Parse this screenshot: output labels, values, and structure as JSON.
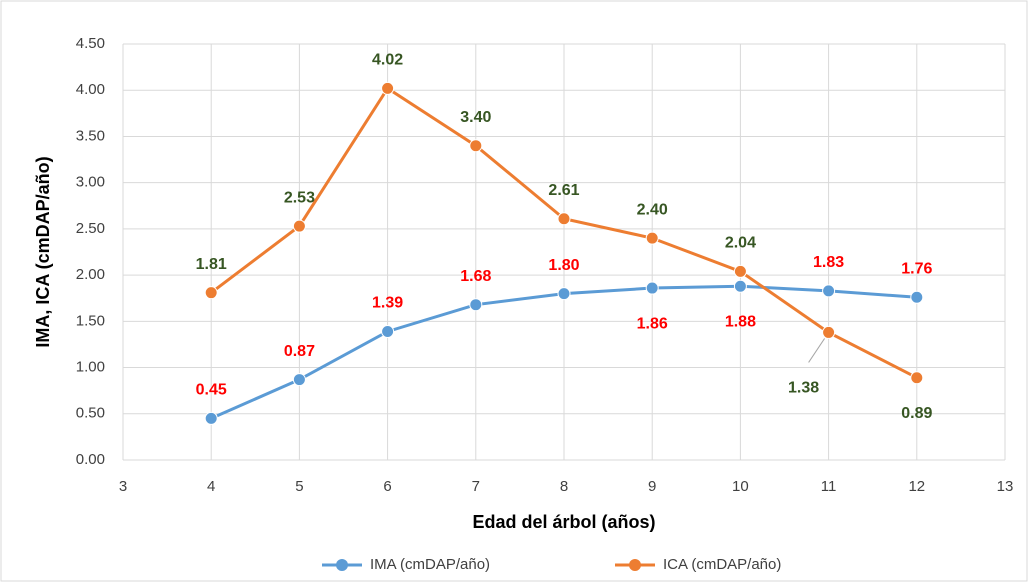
{
  "chart_data": {
    "type": "line",
    "x_label": "Edad del árbol (años)",
    "y_label": "IMA, ICA (cmDAP/año)",
    "x": [
      4,
      5,
      6,
      7,
      8,
      9,
      10,
      11,
      12
    ],
    "series": [
      {
        "name": "IMA (cmDAP/año)",
        "color": "#5b9bd5",
        "label_color": "#ff0000",
        "values": [
          0.45,
          0.87,
          1.39,
          1.68,
          1.8,
          1.86,
          1.88,
          1.83,
          1.76
        ],
        "value_labels": [
          "0.45",
          "0.87",
          "1.39",
          "1.68",
          "1.80",
          "1.86",
          "1.88",
          "1.83",
          "1.76"
        ]
      },
      {
        "name": "ICA (cmDAP/año)",
        "color": "#ed7d31",
        "label_color": "#375623",
        "values": [
          1.81,
          2.53,
          4.02,
          3.4,
          2.61,
          2.4,
          2.04,
          1.38,
          0.89
        ],
        "value_labels": [
          "1.81",
          "2.53",
          "4.02",
          "3.40",
          "2.61",
          "2.40",
          "2.04",
          "1.38",
          "0.89"
        ]
      }
    ],
    "xlim": [
      3,
      13
    ],
    "xticks": [
      3,
      4,
      5,
      6,
      7,
      8,
      9,
      10,
      11,
      12,
      13
    ],
    "ylim": [
      0,
      4.5
    ],
    "yticks": [
      {
        "value": 0,
        "label": "0.00"
      },
      {
        "value": 0.5,
        "label": "0.50"
      },
      {
        "value": 1,
        "label": "1.00"
      },
      {
        "value": 1.5,
        "label": "1.50"
      },
      {
        "value": 2,
        "label": "2.00"
      },
      {
        "value": 2.5,
        "label": "2.50"
      },
      {
        "value": 3,
        "label": "3.00"
      },
      {
        "value": 3.5,
        "label": "3.50"
      },
      {
        "value": 4,
        "label": "4.00"
      },
      {
        "value": 4.5,
        "label": "4.50"
      }
    ],
    "grid": true,
    "legend": "bottom"
  }
}
